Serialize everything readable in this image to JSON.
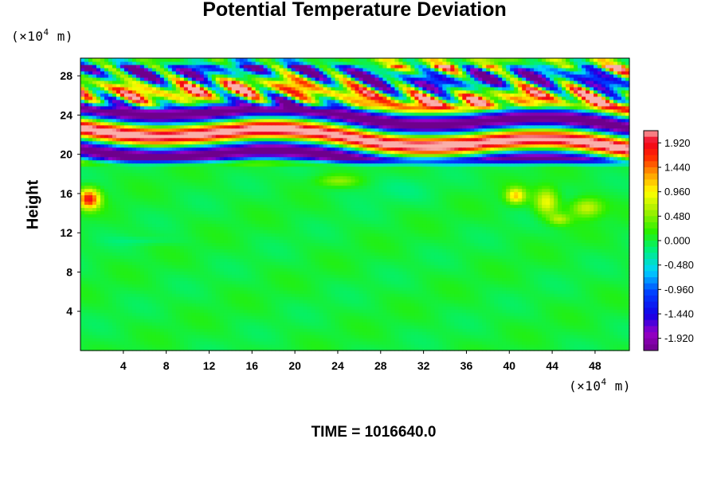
{
  "chart_data": {
    "type": "heatmap",
    "title": "Potential Temperature Deviation",
    "ylabel": "Height",
    "xlabel": "",
    "x_unit": {
      "prefix": "(×10",
      "exp": "4",
      "suffix": " m)"
    },
    "y_unit": {
      "prefix": "(×10",
      "exp": "4",
      "suffix": " m)"
    },
    "xlim": [
      0,
      51.2
    ],
    "ylim": [
      0,
      29.8
    ],
    "xticks": [
      4,
      8,
      12,
      16,
      20,
      24,
      28,
      32,
      36,
      40,
      44,
      48
    ],
    "yticks": [
      4,
      8,
      12,
      16,
      20,
      24,
      28
    ],
    "colorbar": {
      "range": [
        -2.16,
        2.16
      ],
      "levels": 36,
      "ticks": [
        "1.920",
        "1.440",
        "0.960",
        "0.480",
        "0.000",
        "-0.480",
        "-0.960",
        "-1.440",
        "-1.920"
      ],
      "tick_values": [
        1.92,
        1.44,
        0.96,
        0.48,
        0.0,
        -0.48,
        -0.96,
        -1.44,
        -1.92
      ]
    },
    "features": [
      {
        "description": "layered stratospheric bands",
        "x": [
          0,
          51.2
        ],
        "y": [
          19.5,
          25.5
        ],
        "value_range": [
          -2.16,
          2.16
        ]
      },
      {
        "description": "oblique gravity wave crests",
        "x": [
          0,
          51.2
        ],
        "y": [
          24,
          29.8
        ],
        "value_range": [
          -2.0,
          2.0
        ]
      },
      {
        "description": "warm patch",
        "x": [
          0,
          2
        ],
        "y": [
          14.5,
          16.5
        ],
        "value": 1.7
      },
      {
        "description": "warm patches",
        "x": [
          40,
          49
        ],
        "y": [
          14,
          17
        ],
        "value": 1.0
      },
      {
        "description": "near-zero troposphere",
        "x": [
          0,
          51.2
        ],
        "y": [
          0,
          19
        ],
        "value": 0.0
      }
    ]
  },
  "footer": {
    "time": "TIME = 1016640.0"
  }
}
